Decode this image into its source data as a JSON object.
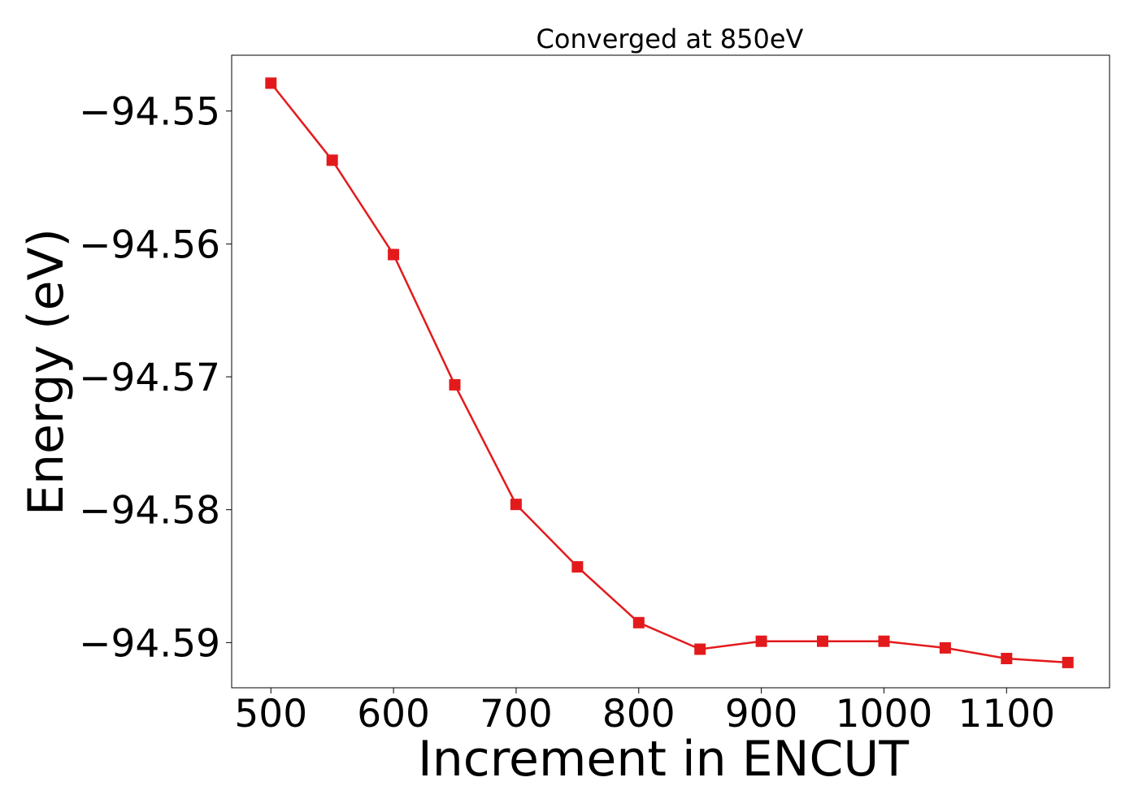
{
  "chart_data": {
    "type": "line",
    "title": "Converged at 850eV",
    "xlabel": "Increment in ENCUT",
    "ylabel": "Energy (eV)",
    "x": [
      500,
      550,
      600,
      650,
      700,
      750,
      800,
      850,
      900,
      950,
      1000,
      1050,
      1100,
      1150
    ],
    "series": [
      {
        "values": [
          -94.5479,
          -94.5537,
          -94.5608,
          -94.5706,
          -94.5796,
          -94.5843,
          -94.5885,
          -94.5905,
          -94.5899,
          -94.5899,
          -94.5899,
          -94.5904,
          -94.5912,
          -94.5915
        ],
        "color": "#e31a1c",
        "marker": "square"
      }
    ],
    "xticks": [
      "500",
      "600",
      "700",
      "800",
      "900",
      "1000",
      "1100"
    ],
    "yticks": [
      "−94.55",
      "−94.56",
      "−94.57",
      "−94.58",
      "−94.59"
    ],
    "xlim": [
      468,
      1184
    ],
    "ylim": [
      -94.5934,
      -94.5458
    ],
    "grid": false,
    "legend": false
  }
}
